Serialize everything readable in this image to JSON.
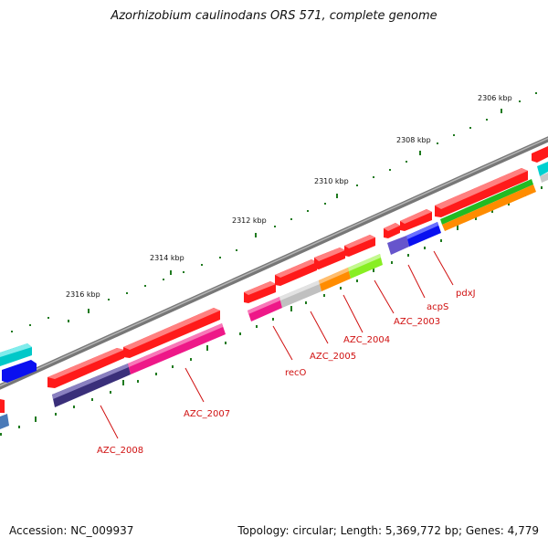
{
  "title": "Azorhizobium caulinodans ORS 571, complete genome",
  "footer": {
    "accession": "Accession: NC_009937",
    "genome_info": "Topology: circular; Length: 5,369,772 bp; Genes: 4,779"
  },
  "scale_labels": [
    "2306 kbp",
    "2308 kbp",
    "2310 kbp",
    "2312 kbp",
    "2314 kbp",
    "2316 kbp"
  ],
  "gene_labels": [
    "pdxJ",
    "acpS",
    "AZC_2003",
    "AZC_2004",
    "AZC_2005",
    "recO",
    "AZC_2007",
    "AZC_2008"
  ],
  "colors": {
    "backbone": "#808080",
    "cds": "#ff1a1a",
    "tick": "#1f7a1f",
    "label": "#d01010"
  }
}
